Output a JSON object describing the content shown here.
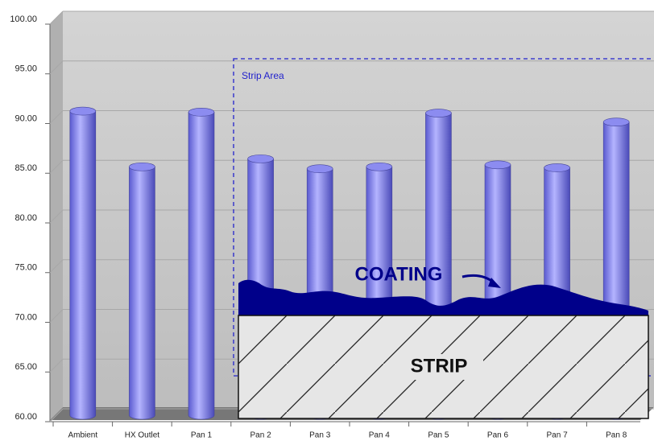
{
  "chart_data": {
    "type": "bar",
    "categories": [
      "Ambient",
      "HX Outlet",
      "Pan 1",
      "Pan 2",
      "Pan 3",
      "Pan 4",
      "Pan 5",
      "Pan 6",
      "Pan 7",
      "Pan 8"
    ],
    "values": [
      90.6,
      85.0,
      90.5,
      85.8,
      84.8,
      85.0,
      90.4,
      85.2,
      84.9,
      89.5
    ],
    "color": "#8c8cf0",
    "ylim": [
      60,
      100
    ],
    "yticks": [
      {
        "value": 60,
        "label": "60.00"
      },
      {
        "value": 65,
        "label": "65.00"
      },
      {
        "value": 70,
        "label": "70.00"
      },
      {
        "value": 75,
        "label": "75.00"
      },
      {
        "value": 80,
        "label": "80.00"
      },
      {
        "value": 85,
        "label": "85.00"
      },
      {
        "value": 90,
        "label": "90.00"
      },
      {
        "value": 95,
        "label": "95.00"
      },
      {
        "value": 100,
        "label": "100.00"
      }
    ],
    "grid": true,
    "annotations": {
      "strip_area": "Strip Area",
      "coating": "COATING",
      "strip": "STRIP"
    }
  }
}
